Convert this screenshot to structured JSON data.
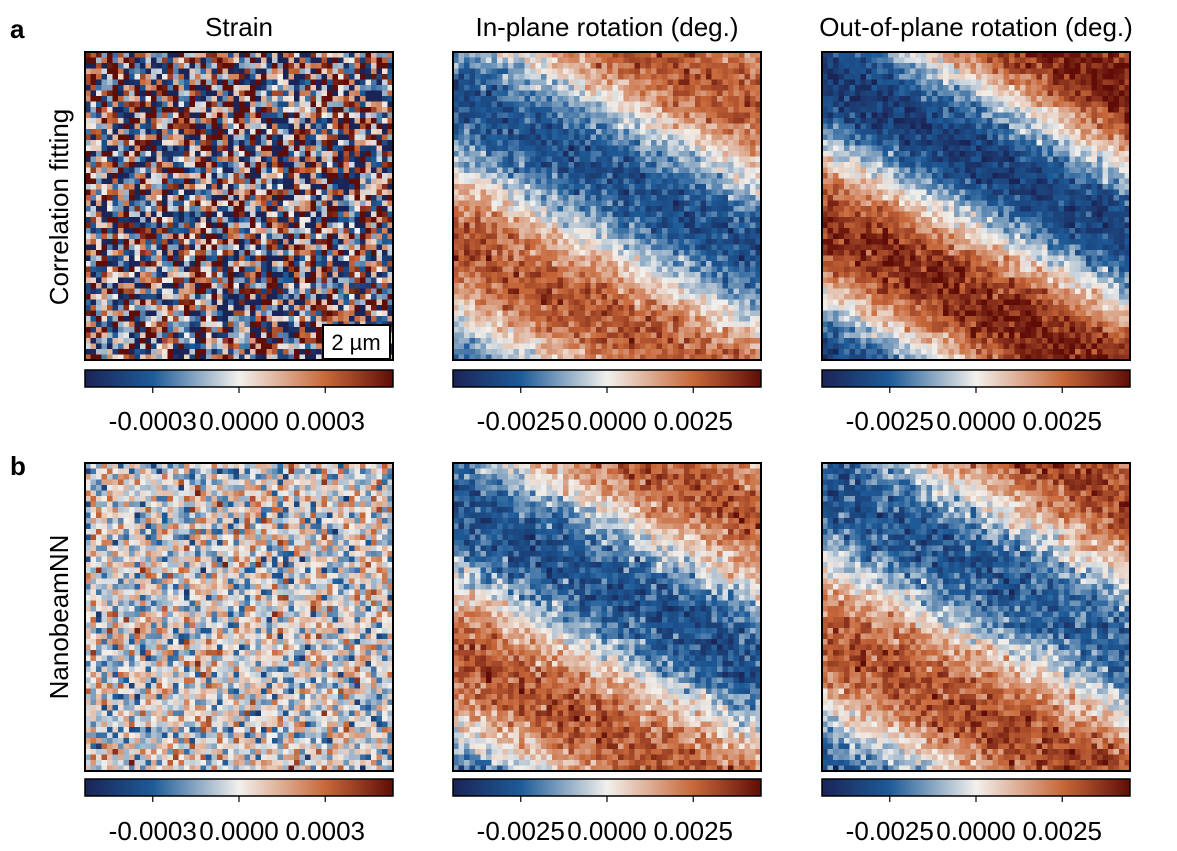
{
  "panel_labels": [
    "a",
    "b"
  ],
  "column_titles": [
    "Strain",
    "In-plane rotation (deg.)",
    "Out-of-plane rotation (deg.)"
  ],
  "row_labels": [
    "Correlation fitting",
    "NanobeamNN"
  ],
  "scale_bar": "2 µm",
  "colorbar_ticks": [
    [
      [
        "-0.0003",
        "0.0000",
        "0.0003"
      ],
      [
        "-0.0025",
        "0.0000",
        "0.0025"
      ],
      [
        "-0.0025",
        "0.0000",
        "0.0025"
      ]
    ],
    [
      [
        "-0.0003",
        "0.0000",
        "0.0003"
      ],
      [
        "-0.0025",
        "0.0000",
        "0.0025"
      ],
      [
        "-0.0025",
        "0.0000",
        "0.0025"
      ]
    ]
  ]
}
